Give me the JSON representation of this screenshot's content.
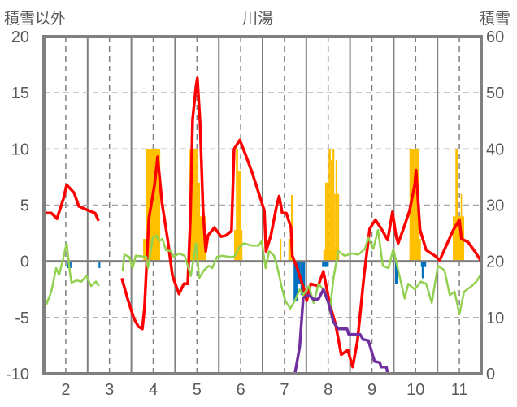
{
  "chart_data": {
    "type": "line",
    "title": "川湯",
    "ylabel_left": "積雪以外",
    "ylabel_right": "積雪",
    "xlim": [
      1.5,
      11.5
    ],
    "ylim_left": [
      -10,
      20
    ],
    "ylim_right": [
      0,
      60
    ],
    "x_ticks": [
      2,
      3,
      4,
      5,
      6,
      7,
      8,
      9,
      10,
      11
    ],
    "y_ticks_left": [
      -10,
      -5,
      0,
      5,
      10,
      15,
      20
    ],
    "y_ticks_right": [
      0,
      10,
      20,
      30,
      40,
      50,
      60
    ],
    "grid": true,
    "colors": {
      "red": "#FF0000",
      "green": "#92D050",
      "purple": "#7030A0",
      "orange": "#FFC000",
      "blue": "#0070C0",
      "axis": "#808080"
    },
    "bars_orange": [
      [
        3.77,
        3.84,
        2
      ],
      [
        3.84,
        4.16,
        10
      ],
      [
        4.98,
        5.2,
        4
      ],
      [
        4.83,
        5.01,
        10
      ],
      [
        5.01,
        5.07,
        7
      ],
      [
        5.12,
        5.16,
        6
      ],
      [
        5.85,
        6.04,
        2.8
      ],
      [
        5.89,
        5.94,
        10
      ],
      [
        5.94,
        6.0,
        8
      ],
      [
        6.89,
        6.93,
        2
      ],
      [
        7.09,
        7.21,
        2
      ],
      [
        7.15,
        7.19,
        5.9
      ],
      [
        7.89,
        8.25,
        1
      ],
      [
        7.93,
        8.01,
        7
      ],
      [
        8.01,
        8.06,
        10
      ],
      [
        8.06,
        8.1,
        9
      ],
      [
        8.1,
        8.14,
        10
      ],
      [
        8.14,
        8.17,
        6
      ],
      [
        8.17,
        8.21,
        9
      ],
      [
        8.21,
        8.25,
        6
      ],
      [
        9.86,
        10.12,
        2
      ],
      [
        9.86,
        10.07,
        10
      ],
      [
        10.85,
        11.11,
        4
      ],
      [
        10.91,
        10.98,
        10
      ],
      [
        11.03,
        11.06,
        6
      ]
    ],
    "bars_blue": [
      [
        2.02,
        2.13,
        -0.6
      ],
      [
        2.75,
        2.79,
        -0.6
      ],
      [
        7.21,
        7.3,
        -3.5
      ],
      [
        7.3,
        7.37,
        -2.0
      ],
      [
        7.37,
        7.47,
        -3.0
      ],
      [
        7.86,
        8.01,
        -0.5
      ],
      [
        9.53,
        9.59,
        -2.0
      ],
      [
        10.12,
        10.24,
        -0.5
      ],
      [
        10.14,
        10.18,
        -1.5
      ]
    ],
    "series": [
      {
        "name": "red",
        "axis": "left",
        "points": [
          [
            1.5,
            4.3
          ],
          [
            1.67,
            4.3
          ],
          [
            1.8,
            3.8
          ],
          [
            1.95,
            5.6
          ],
          [
            2.02,
            6.8
          ],
          [
            2.19,
            6.1
          ],
          [
            2.3,
            4.9
          ],
          [
            2.47,
            4.6
          ],
          [
            2.67,
            4.3
          ],
          [
            2.75,
            3.6
          ],
          null,
          [
            3.28,
            -1.5
          ],
          [
            3.41,
            -3.3
          ],
          [
            3.56,
            -5.1
          ],
          [
            3.66,
            -5.8
          ],
          [
            3.75,
            -6.0
          ],
          [
            3.8,
            -4.2
          ],
          [
            3.9,
            3.8
          ],
          [
            4.03,
            6.8
          ],
          [
            4.1,
            9.3
          ],
          [
            4.2,
            5.2
          ],
          [
            4.33,
            1.9
          ],
          [
            4.44,
            -1.3
          ],
          [
            4.59,
            -2.9
          ],
          [
            4.7,
            -2.0
          ],
          [
            4.79,
            -2.0
          ],
          [
            4.85,
            3.8
          ],
          [
            4.9,
            12.6
          ],
          [
            4.98,
            15.6
          ],
          [
            5.01,
            16.3
          ],
          [
            5.07,
            12.4
          ],
          [
            5.14,
            4.5
          ],
          [
            5.2,
            0.9
          ],
          [
            5.25,
            2.3
          ],
          [
            5.4,
            3.0
          ],
          [
            5.55,
            2.2
          ],
          [
            5.66,
            2.3
          ],
          [
            5.79,
            2.7
          ],
          [
            5.85,
            10.0
          ],
          [
            5.98,
            10.8
          ],
          [
            6.11,
            9.5
          ],
          [
            6.26,
            7.9
          ],
          [
            6.41,
            6.1
          ],
          [
            6.54,
            4.5
          ],
          [
            6.58,
            0.9
          ],
          [
            6.69,
            2.3
          ],
          [
            6.82,
            4.9
          ],
          [
            6.88,
            5.8
          ],
          [
            6.95,
            4.3
          ],
          [
            7.04,
            4.3
          ],
          [
            7.15,
            3.0
          ],
          [
            7.18,
            0.5
          ],
          [
            7.29,
            -0.6
          ],
          [
            7.44,
            -2.4
          ],
          [
            7.51,
            -3.5
          ],
          [
            7.6,
            -2.0
          ],
          [
            7.77,
            -2.2
          ],
          [
            7.89,
            -0.9
          ],
          [
            8.04,
            -3.9
          ],
          [
            8.17,
            -5.6
          ],
          [
            8.3,
            -8.3
          ],
          [
            8.45,
            -7.9
          ],
          [
            8.56,
            -9.4
          ],
          [
            8.67,
            -7.1
          ],
          [
            8.82,
            -1.3
          ],
          [
            8.95,
            2.9
          ],
          [
            9.08,
            3.7
          ],
          [
            9.23,
            2.8
          ],
          [
            9.36,
            1.9
          ],
          [
            9.47,
            4.4
          ],
          [
            9.55,
            2.3
          ],
          [
            9.6,
            1.6
          ],
          [
            9.73,
            3.0
          ],
          [
            9.86,
            4.5
          ],
          [
            9.98,
            6.8
          ],
          [
            10.01,
            8.1
          ],
          [
            10.1,
            2.8
          ],
          [
            10.24,
            1.0
          ],
          [
            10.44,
            0.5
          ],
          [
            10.55,
            0.1
          ],
          [
            10.7,
            1.4
          ],
          [
            10.85,
            2.7
          ],
          [
            11.0,
            3.7
          ],
          [
            11.05,
            2.0
          ],
          [
            11.2,
            1.7
          ],
          [
            11.35,
            0.9
          ],
          [
            11.5,
            0.0
          ]
        ]
      },
      {
        "name": "green",
        "axis": "left",
        "points": [
          [
            1.52,
            -3.1
          ],
          [
            1.56,
            -3.8
          ],
          [
            1.67,
            -2.7
          ],
          [
            1.78,
            -0.6
          ],
          [
            1.85,
            -1.2
          ],
          [
            1.95,
            0.4
          ],
          [
            2.02,
            1.6
          ],
          [
            2.09,
            -0.8
          ],
          [
            2.13,
            -1.9
          ],
          [
            2.24,
            -1.7
          ],
          [
            2.36,
            -1.8
          ],
          [
            2.47,
            -1.3
          ],
          [
            2.58,
            -2.2
          ],
          [
            2.69,
            -1.8
          ],
          [
            2.76,
            -2.2
          ],
          null,
          [
            3.3,
            -0.9
          ],
          [
            3.34,
            0.6
          ],
          [
            3.45,
            0.4
          ],
          [
            3.53,
            -0.6
          ],
          [
            3.6,
            0.5
          ],
          [
            3.84,
            0.4
          ],
          [
            3.88,
            -0.6
          ],
          [
            3.99,
            2.1
          ],
          [
            4.07,
            2.3
          ],
          [
            4.14,
            1.8
          ],
          [
            4.21,
            2.0
          ],
          [
            4.29,
            1.0
          ],
          [
            4.4,
            0.9
          ],
          [
            4.47,
            0.4
          ],
          [
            4.59,
            0.7
          ],
          [
            4.72,
            0.5
          ],
          [
            4.86,
            -1.3
          ],
          [
            4.98,
            1.6
          ],
          [
            5.05,
            -1.5
          ],
          [
            5.16,
            -0.8
          ],
          [
            5.27,
            -0.4
          ],
          [
            5.35,
            -0.6
          ],
          [
            5.46,
            0.4
          ],
          [
            5.57,
            0.5
          ],
          [
            5.74,
            0.4
          ],
          [
            5.85,
            0.4
          ],
          [
            5.96,
            1.2
          ],
          [
            6.07,
            1.6
          ],
          [
            6.26,
            1.4
          ],
          [
            6.41,
            1.4
          ],
          [
            6.48,
            1.8
          ],
          [
            6.57,
            -0.6
          ],
          [
            6.65,
            0.9
          ],
          [
            6.76,
            0.5
          ],
          [
            6.83,
            -0.4
          ],
          [
            6.95,
            -2.5
          ],
          [
            7.02,
            -3.5
          ],
          [
            7.13,
            -4.2
          ],
          [
            7.24,
            -3.5
          ],
          [
            7.35,
            -2.5
          ],
          [
            7.43,
            -3.0
          ],
          [
            7.56,
            -2.2
          ],
          [
            7.67,
            -3.7
          ],
          [
            7.78,
            -2.0
          ],
          [
            7.93,
            -2.7
          ],
          [
            8.04,
            -4.4
          ],
          [
            8.12,
            -1.5
          ],
          [
            8.23,
            0.9
          ],
          [
            8.38,
            0.5
          ],
          [
            8.54,
            0.7
          ],
          [
            8.69,
            0.6
          ],
          [
            8.84,
            1.1
          ],
          [
            8.92,
            2.1
          ],
          [
            9.03,
            1.1
          ],
          [
            9.14,
            2.8
          ],
          [
            9.25,
            -0.4
          ],
          [
            9.38,
            -0.6
          ],
          [
            9.49,
            1.1
          ],
          [
            9.6,
            -0.8
          ],
          [
            9.75,
            -3.3
          ],
          [
            9.83,
            -2.0
          ],
          [
            9.98,
            -2.5
          ],
          [
            10.12,
            -1.8
          ],
          [
            10.24,
            -2.0
          ],
          [
            10.37,
            -3.7
          ],
          [
            10.44,
            -2.0
          ],
          [
            10.51,
            -0.4
          ],
          [
            10.66,
            -0.8
          ],
          [
            10.78,
            -3.0
          ],
          [
            10.89,
            -2.7
          ],
          [
            11.0,
            -4.7
          ],
          [
            11.11,
            -2.7
          ],
          [
            11.28,
            -2.2
          ],
          [
            11.39,
            -1.8
          ],
          [
            11.5,
            -1.1
          ]
        ]
      },
      {
        "name": "purple",
        "axis": "right",
        "points": [
          [
            1.5,
            0
          ],
          [
            2.75,
            0
          ],
          null,
          [
            3.25,
            0
          ],
          [
            7.24,
            0
          ],
          [
            7.35,
            4.8
          ],
          [
            7.43,
            13.5
          ],
          [
            7.56,
            14
          ],
          [
            7.67,
            13.2
          ],
          [
            7.78,
            13.3
          ],
          [
            7.89,
            15
          ],
          [
            8.01,
            12.6
          ],
          [
            8.12,
            9.2
          ],
          [
            8.23,
            8
          ],
          [
            8.43,
            8
          ],
          [
            8.47,
            7
          ],
          [
            8.73,
            7
          ],
          [
            8.8,
            6.1
          ],
          [
            8.92,
            5.9
          ],
          [
            9.06,
            2.2
          ],
          [
            9.18,
            2
          ],
          [
            9.21,
            1.2
          ],
          [
            9.33,
            1.2
          ],
          [
            9.36,
            0
          ],
          [
            11.5,
            0
          ]
        ]
      }
    ]
  }
}
